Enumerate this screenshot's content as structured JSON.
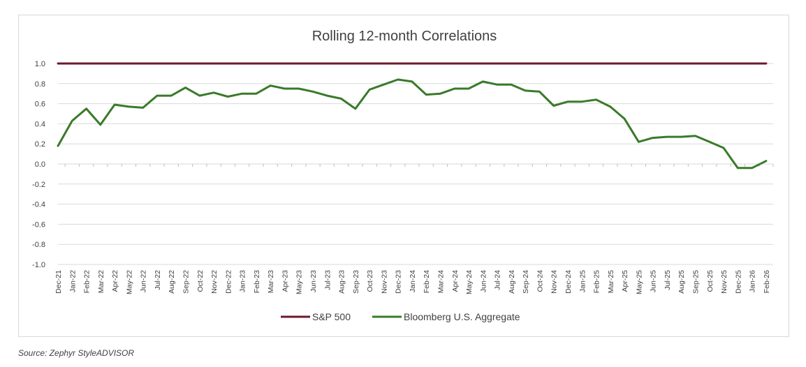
{
  "source_note": "Source: Zephyr StyleADVISOR",
  "chart_data": {
    "type": "line",
    "title": "Rolling 12-month Correlations",
    "xlabel": "",
    "ylabel": "",
    "ylim": [
      -1.0,
      1.0
    ],
    "yticks": [
      "1.0",
      "0.8",
      "0.6",
      "0.4",
      "0.2",
      "0.0",
      "-0.2",
      "-0.4",
      "-0.6",
      "-0.8",
      "-1.0"
    ],
    "grid": true,
    "legend_position": "bottom",
    "categories": [
      "Dec-21",
      "Jan-22",
      "Feb-22",
      "Mar-22",
      "Apr-22",
      "May-22",
      "Jun-22",
      "Jul-22",
      "Aug-22",
      "Sep-22",
      "Oct-22",
      "Nov-22",
      "Dec-22",
      "Jan-23",
      "Feb-23",
      "Mar-23",
      "Apr-23",
      "May-23",
      "Jun-23",
      "Jul-23",
      "Aug-23",
      "Sep-23",
      "Oct-23",
      "Nov-23",
      "Dec-23",
      "Jan-24",
      "Feb-24",
      "Mar-24",
      "Apr-24",
      "May-24",
      "Jun-24",
      "Jul-24",
      "Aug-24",
      "Sep-24",
      "Oct-24",
      "Nov-24",
      "Dec-24",
      "Jan-25",
      "Feb-25",
      "Mar-25",
      "Apr-25",
      "May-25",
      "Jun-25",
      "Jul-25",
      "Aug-25",
      "Sep-25",
      "Oct-25",
      "Nov-25",
      "Dec-25",
      "Jan-26",
      "Feb-26"
    ],
    "series": [
      {
        "name": "S&P 500",
        "color": "#6b1a2e",
        "values": [
          1.0,
          1.0,
          1.0,
          1.0,
          1.0,
          1.0,
          1.0,
          1.0,
          1.0,
          1.0,
          1.0,
          1.0,
          1.0,
          1.0,
          1.0,
          1.0,
          1.0,
          1.0,
          1.0,
          1.0,
          1.0,
          1.0,
          1.0,
          1.0,
          1.0,
          1.0,
          1.0,
          1.0,
          1.0,
          1.0,
          1.0,
          1.0,
          1.0,
          1.0,
          1.0,
          1.0,
          1.0,
          1.0,
          1.0,
          1.0,
          1.0,
          1.0,
          1.0,
          1.0,
          1.0,
          1.0,
          1.0,
          1.0,
          1.0,
          1.0,
          1.0
        ]
      },
      {
        "name": "Bloomberg U.S. Aggregate",
        "color": "#3a7a2a",
        "values": [
          0.18,
          0.43,
          0.55,
          0.39,
          0.59,
          0.57,
          0.56,
          0.68,
          0.68,
          0.76,
          0.68,
          0.71,
          0.67,
          0.7,
          0.7,
          0.78,
          0.75,
          0.75,
          0.72,
          0.68,
          0.65,
          0.55,
          0.74,
          0.79,
          0.84,
          0.82,
          0.69,
          0.7,
          0.75,
          0.75,
          0.82,
          0.79,
          0.79,
          0.73,
          0.72,
          0.58,
          0.62,
          0.62,
          0.64,
          0.57,
          0.45,
          0.22,
          0.26,
          0.27,
          0.27,
          0.28,
          0.22,
          0.16,
          -0.04,
          -0.04,
          0.03
        ]
      }
    ]
  }
}
